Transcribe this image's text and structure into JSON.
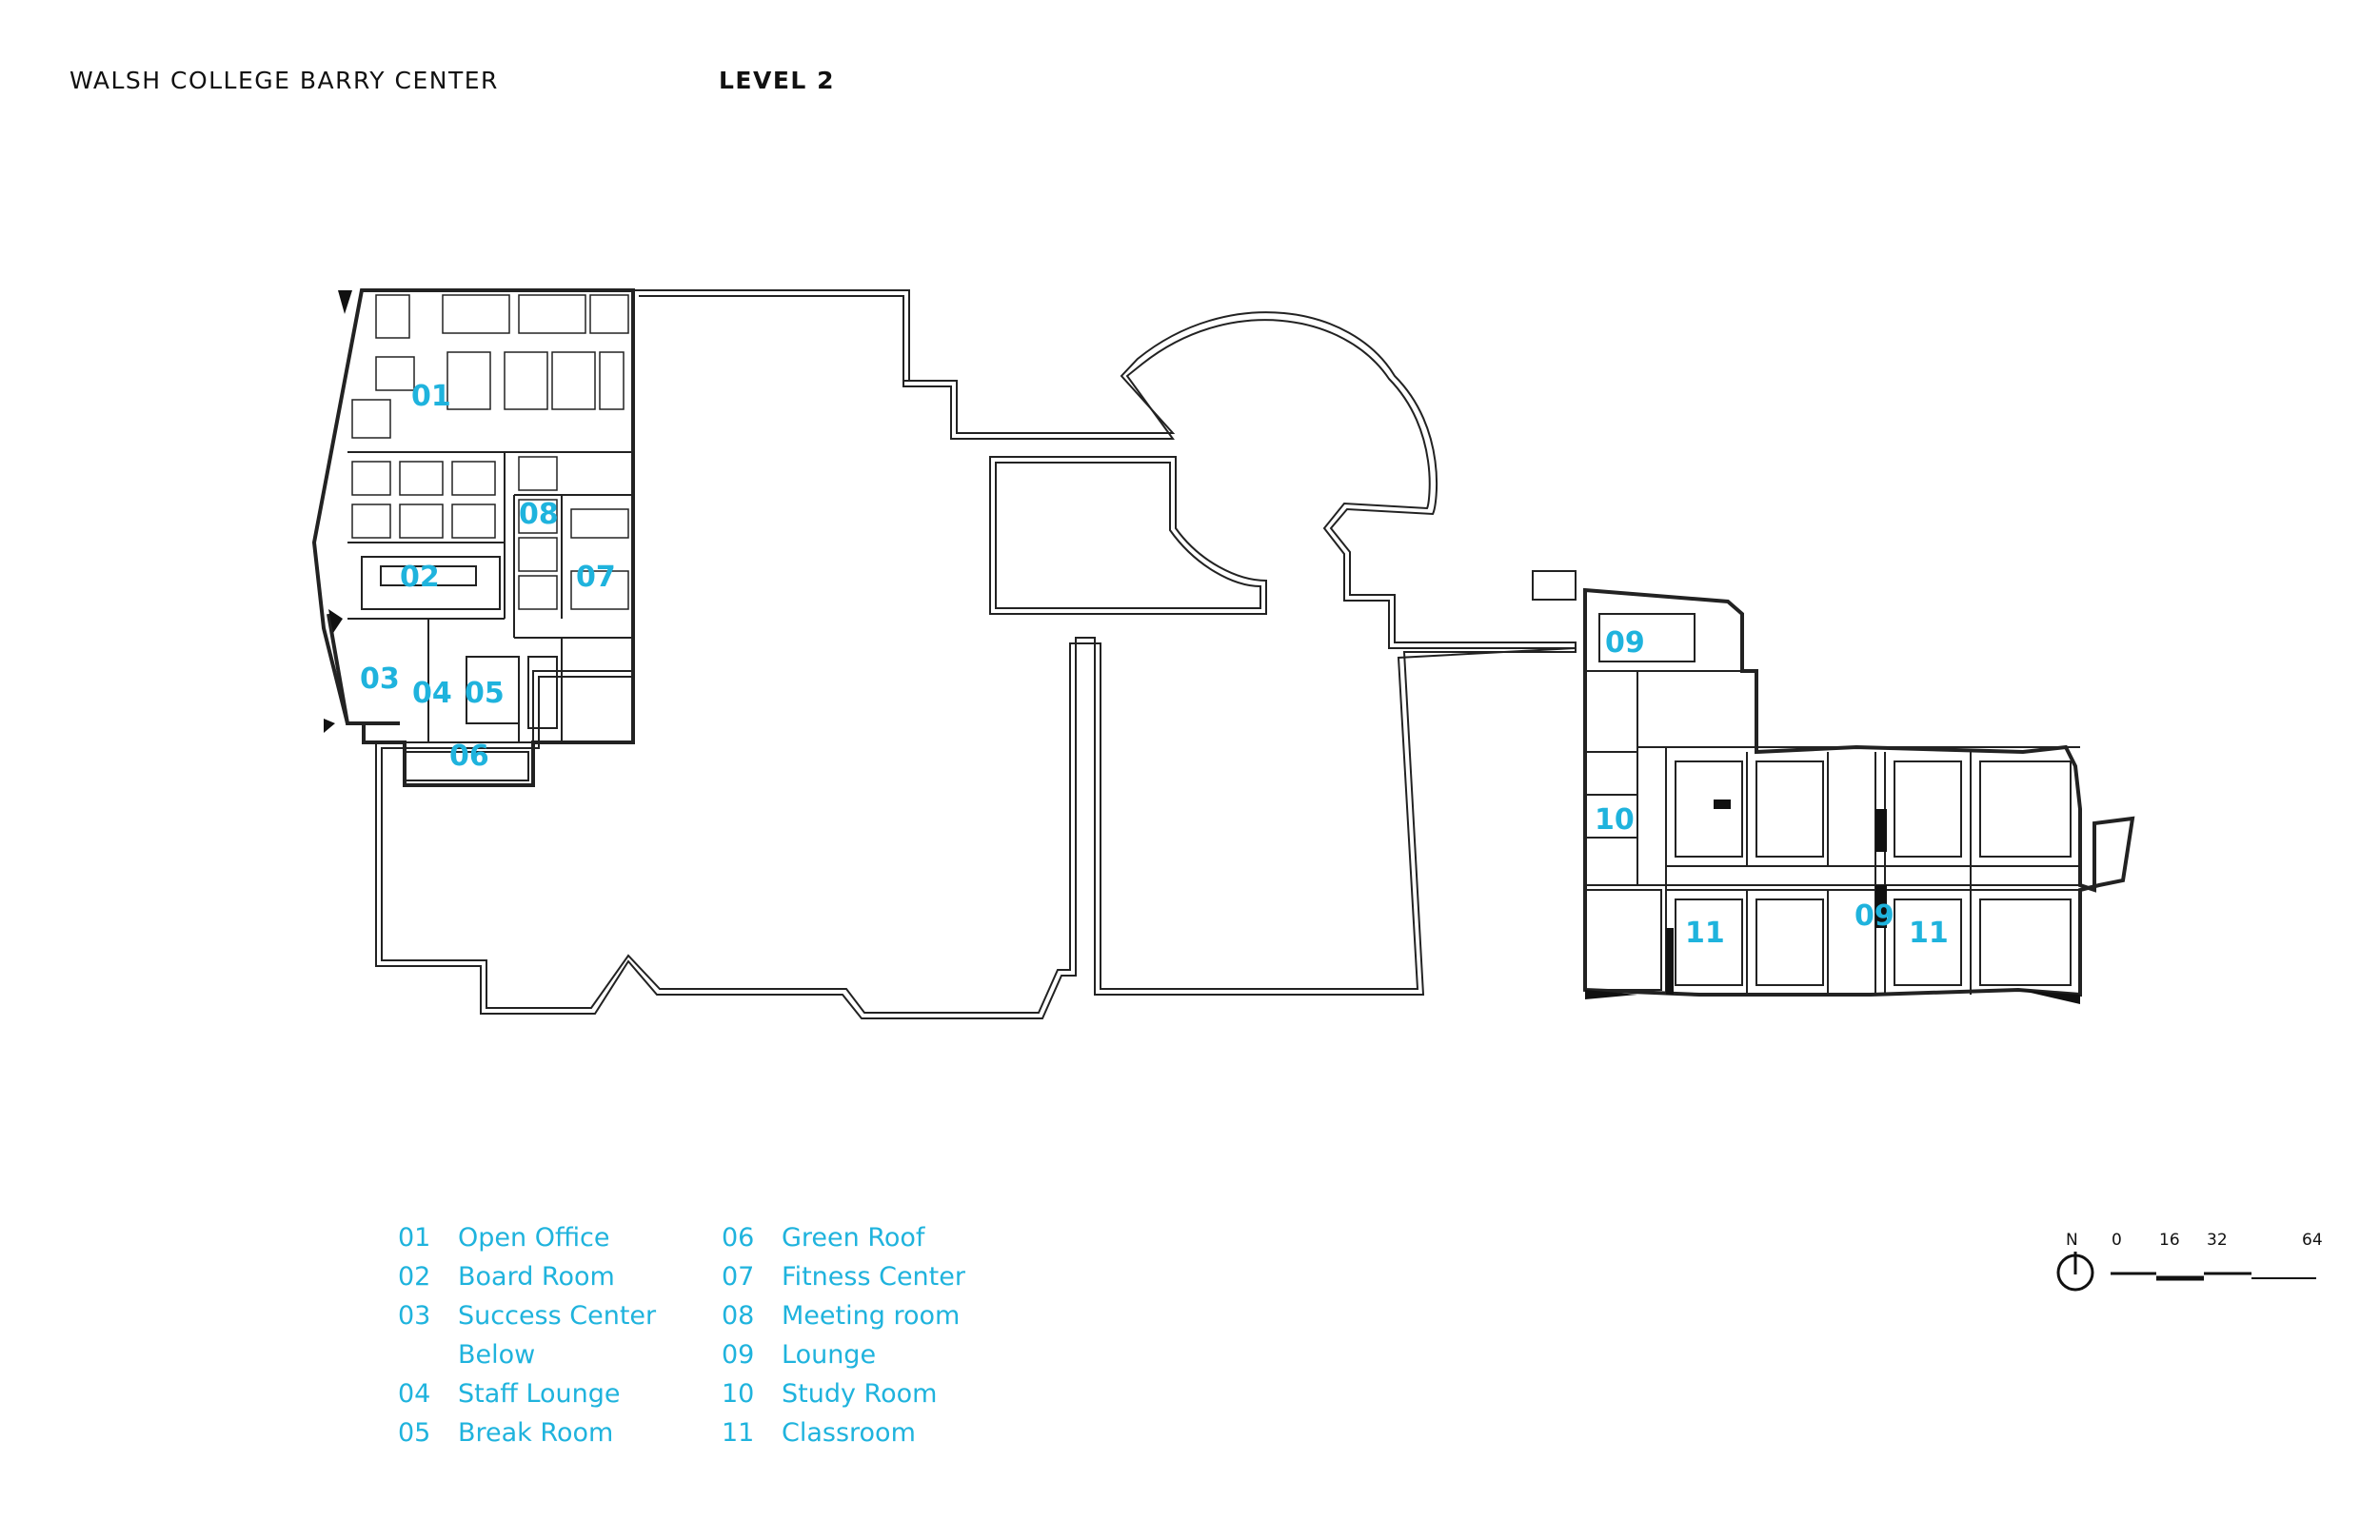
{
  "header": {
    "building": "WALSH COLLEGE BARRY CENTER",
    "level": "LEVEL 2"
  },
  "rooms": [
    {
      "num": "01",
      "name": "Open Office"
    },
    {
      "num": "02",
      "name": "Board Room"
    },
    {
      "num": "03",
      "name": "Success Center",
      "name2": "Below"
    },
    {
      "num": "04",
      "name": "Staff Lounge"
    },
    {
      "num": "05",
      "name": "Break Room"
    },
    {
      "num": "06",
      "name": "Green Roof"
    },
    {
      "num": "07",
      "name": "Fitness Center"
    },
    {
      "num": "08",
      "name": "Meeting room"
    },
    {
      "num": "09",
      "name": "Lounge"
    },
    {
      "num": "10",
      "name": "Study Room"
    },
    {
      "num": "11",
      "name": "Classroom"
    }
  ],
  "plan_labels": {
    "r01": "01",
    "r02": "02",
    "r03": "03",
    "r04": "04",
    "r05": "05",
    "r06": "06",
    "r07": "07",
    "r08": "08",
    "r09a": "09",
    "r09b": "09",
    "r10": "10",
    "r11a": "11",
    "r11b": "11"
  },
  "north": {
    "label": "N"
  },
  "scale": {
    "ticks": [
      "0",
      "16",
      "32",
      "64"
    ]
  },
  "colors": {
    "accent": "#1fb3dd",
    "line": "#222222"
  }
}
